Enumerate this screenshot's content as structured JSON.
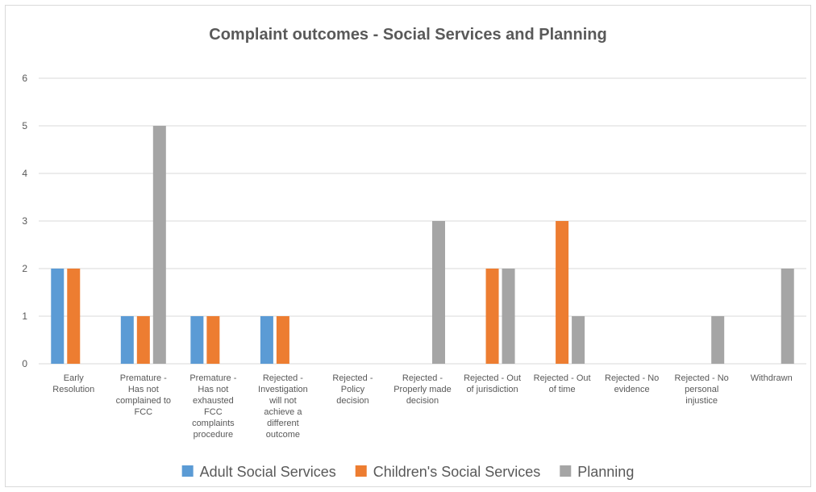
{
  "chart_data": {
    "type": "bar",
    "title": "Complaint outcomes - Social Services and Planning",
    "xlabel": "",
    "ylabel": "",
    "ylim": [
      0,
      6
    ],
    "yticks": [
      "0",
      "1",
      "2",
      "3",
      "4",
      "5",
      "6"
    ],
    "grid": true,
    "legend_position": "bottom",
    "categories": [
      [
        "Early",
        "Resolution"
      ],
      [
        "Premature -",
        "Has not",
        "complained to",
        "FCC"
      ],
      [
        "Premature -",
        "Has not",
        "exhausted",
        "FCC",
        "complaints",
        "procedure"
      ],
      [
        "Rejected -",
        "Investigation",
        "will not",
        "achieve a",
        "different",
        "outcome"
      ],
      [
        "Rejected -",
        "Policy",
        "decision"
      ],
      [
        "Rejected -",
        "Properly made",
        "decision"
      ],
      [
        "Rejected - Out",
        "of jurisdiction"
      ],
      [
        "Rejected - Out",
        "of time"
      ],
      [
        "Rejected - No",
        "evidence"
      ],
      [
        "Rejected - No",
        "personal",
        "injustice"
      ],
      [
        "Withdrawn"
      ]
    ],
    "series": [
      {
        "name": "Adult Social Services",
        "color": "#5b9bd5",
        "values": [
          2,
          1,
          1,
          1,
          0,
          0,
          0,
          0,
          0,
          0,
          0
        ]
      },
      {
        "name": "Children's Social Services",
        "color": "#ed7d31",
        "values": [
          2,
          1,
          1,
          1,
          0,
          0,
          2,
          3,
          0,
          0,
          0
        ]
      },
      {
        "name": "Planning",
        "color": "#a5a5a5",
        "values": [
          0,
          5,
          0,
          0,
          0,
          3,
          2,
          1,
          0,
          1,
          2
        ]
      }
    ],
    "gridline_color": "#d9d9d9"
  }
}
